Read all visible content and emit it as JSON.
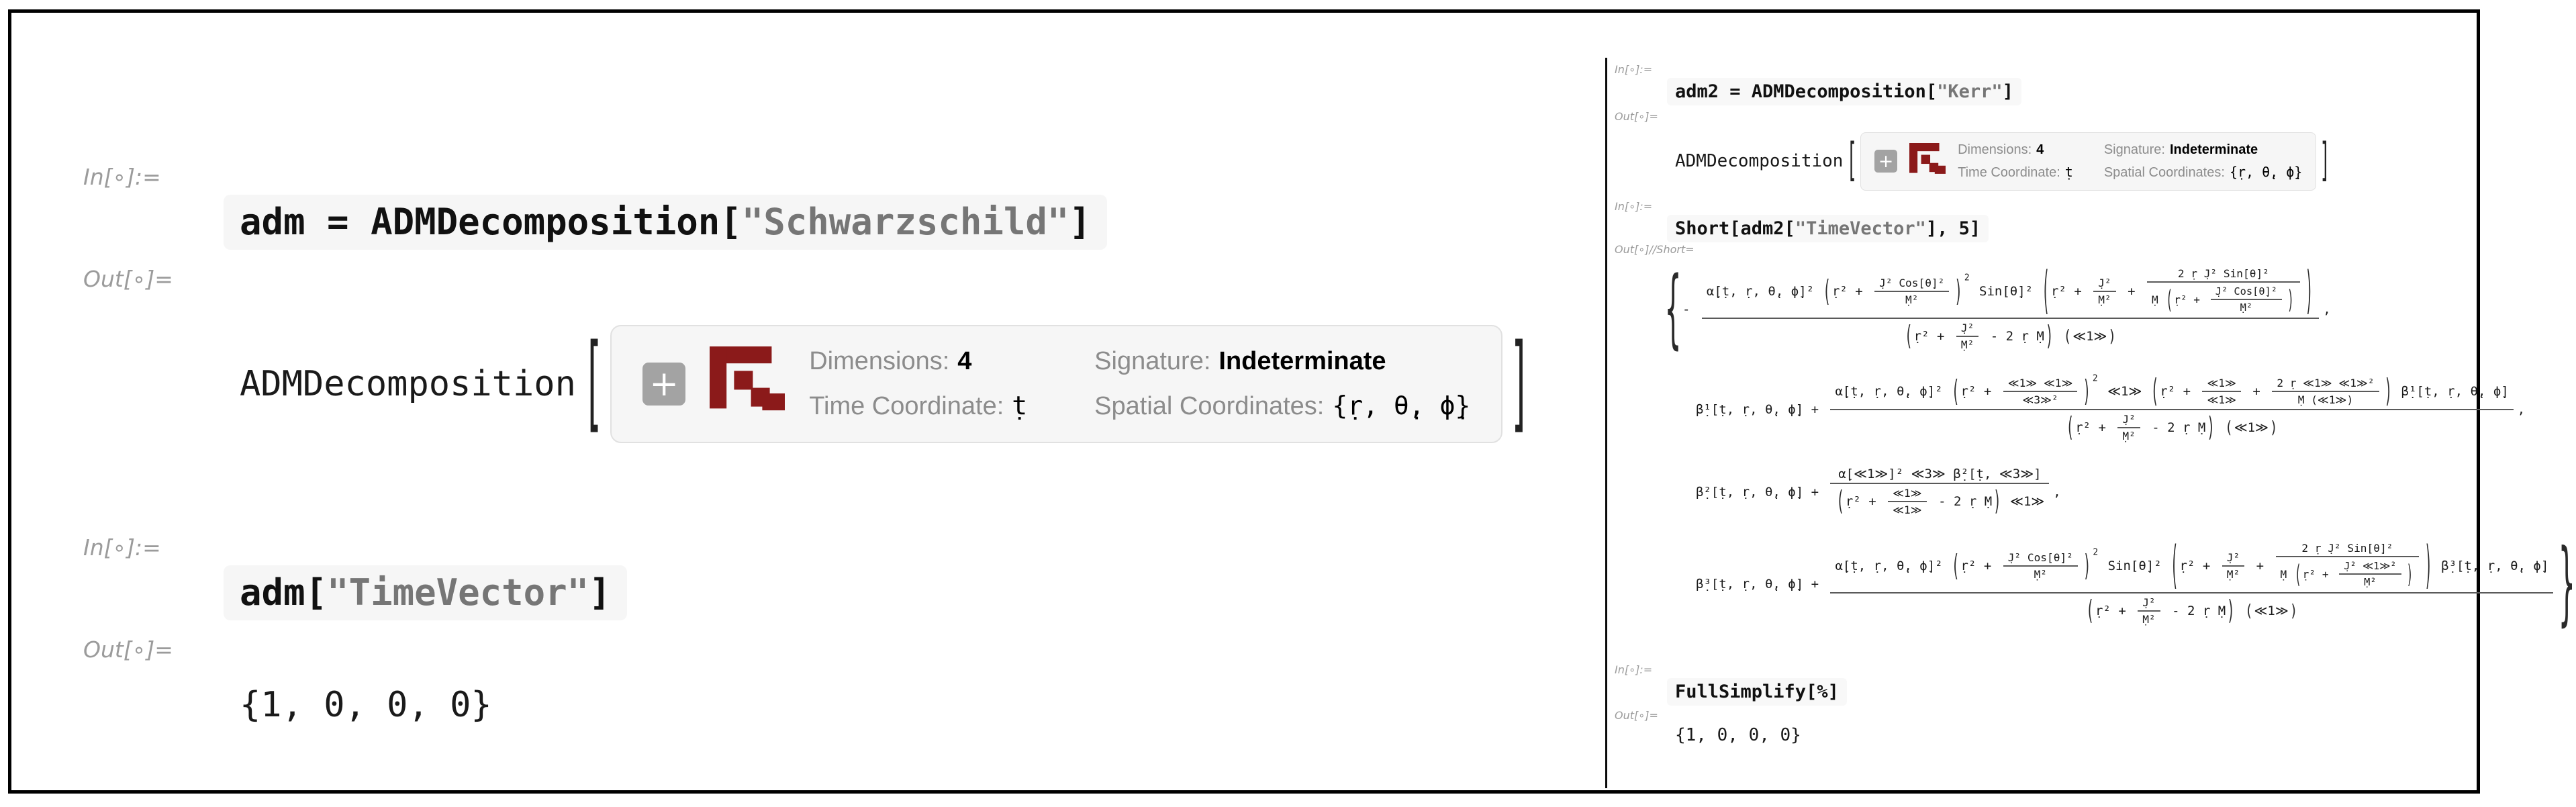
{
  "colors": {
    "accent_maroon": "#8b1a1a",
    "box_bg": "#f6f6f6",
    "box_border": "#e1e1e1",
    "label_gray": "#8c8c8c",
    "inout_label_gray": "#9b9b9b",
    "string_gray": "#767676",
    "frame_black": "#000000"
  },
  "left_panel": {
    "in1_label": "In[∘]:=",
    "input1": {
      "pre": "adm = ADMDecomposition[",
      "string": "\"Schwarzschild\"",
      "post": "]"
    },
    "out1_label": "Out[∘]=",
    "output1_head": "ADMDecomposition",
    "bracket_open": "[",
    "bracket_close": "]",
    "summary": {
      "plus_icon": "+",
      "dim_label": "Dimensions:",
      "dim_value": "4",
      "time_label": "Time Coordinate:",
      "time_value": "ṭ",
      "sig_label": "Signature:",
      "sig_value": "Indeterminate",
      "spatial_label": "Spatial Coordinates:",
      "spatial_value": "{ṛ, θ̣, ϕ̣}"
    },
    "in2_label": "In[∘]:=",
    "input2": {
      "pre": "adm[",
      "string": "\"TimeVector\"",
      "post": "]"
    },
    "out2_label": "Out[∘]=",
    "output2": "{1, 0, 0, 0}"
  },
  "right_panel": {
    "in1_label": "In[∘]:=",
    "input1": {
      "pre": "adm2 = ADMDecomposition[",
      "string": "\"Kerr\"",
      "post": "]"
    },
    "out1_label": "Out[∘]=",
    "output1_head": "ADMDecomposition",
    "bracket_open": "[",
    "bracket_close": "]",
    "summary": {
      "plus_icon": "+",
      "dim_label": "Dimensions:",
      "dim_value": "4",
      "time_label": "Time Coordinate:",
      "time_value": "ṭ",
      "sig_label": "Signature:",
      "sig_value": "Indeterminate",
      "spatial_label": "Spatial Coordinates:",
      "spatial_value": "{ṛ, θ̣, ϕ̣}"
    },
    "in2_label": "In[∘]:=",
    "input2": {
      "pre": "Short[adm2[",
      "string": "\"TimeVector\"",
      "post": "], 5]"
    },
    "out2_label": "Out[∘]//Short=",
    "in3_label": "In[∘]:=",
    "input3": {
      "pre": "FullSimplify[%]",
      "string": "",
      "post": ""
    },
    "out3_label": "Out[∘]=",
    "output3": "{1, 0, 0, 0}",
    "math": [
      [
        {
          "br": "{",
          "s": 3.2,
          "fs": 2.1
        },
        "- ",
        {
          "fr": [
            [
              "α̣[ṭ, ṛ, θ̣, ϕ̣]² ",
              {
                "par": [
                  "(",
                  ")"
                ],
                "s": 2.3,
                "c": [
                  "ṛ² + ",
                  {
                    "fr": [
                      "J̣² Cos[θ̣]²",
                      "Ṃ²"
                    ]
                  }
                ]
              },
              {
                "sup": "2"
              },
              " Sin[θ̣]² ",
              {
                "par": [
                  "(",
                  ")"
                ],
                "s": 4.0,
                "c": [
                  "ṛ² + ",
                  {
                    "fr": [
                      "J̣²",
                      "Ṃ²"
                    ]
                  },
                  " + ",
                  {
                    "fr": [
                      "2 ṛ J̣² Sin[θ̣]²",
                      [
                        "Ṃ ",
                        {
                          "par": [
                            "(",
                            ")"
                          ],
                          "s": 2.3,
                          "c": [
                            "ṛ² + ",
                            {
                              "fr": [
                                "J̣² Cos[θ̣]²",
                                "Ṃ²"
                              ]
                            }
                          ]
                        }
                      ]
                    ]
                  }
                ]
              }
            ],
            [
              {
                "par": [
                  "(",
                  ")"
                ],
                "s": 2.1,
                "c": [
                  "ṛ² + ",
                  {
                    "fr": [
                      "J̣²",
                      "Ṃ²"
                    ]
                  },
                  " - 2 ṛ Ṃ"
                ]
              },
              " ",
              {
                "par": [
                  "(",
                  ")"
                ],
                "s": 1.3,
                "c": [
                  "≪1≫"
                ]
              }
            ]
          ]
        },
        ","
      ],
      [
        "β̣¹[ṭ, ṛ, θ̣, ϕ̣] + ",
        {
          "fr": [
            [
              "α̣[ṭ, ṛ, θ̣, ϕ̣]² ",
              {
                "par": [
                  "(",
                  ")"
                ],
                "s": 2.3,
                "c": [
                  "ṛ² + ",
                  {
                    "fr": [
                      "≪1≫ ≪1≫",
                      "≪3≫²"
                    ]
                  }
                ]
              },
              {
                "sup": "2"
              },
              " ≪1≫ ",
              {
                "par": [
                  "(",
                  ")"
                ],
                "s": 2.5,
                "c": [
                  "ṛ² + ",
                  {
                    "fr": [
                      "≪1≫",
                      "≪1≫"
                    ]
                  },
                  " + ",
                  {
                    "fr": [
                      "2 ṛ ≪1≫ ≪1≫²",
                      "Ṃ (≪1≫)"
                    ]
                  }
                ]
              },
              " β̣¹[ṭ, ṛ, θ̣, ϕ̣]"
            ],
            [
              {
                "par": [
                  "(",
                  ")"
                ],
                "s": 2.1,
                "c": [
                  "ṛ² + ",
                  {
                    "fr": [
                      "J̣²",
                      "Ṃ²"
                    ]
                  },
                  " - 2 ṛ Ṃ"
                ]
              },
              " ",
              {
                "par": [
                  "(",
                  ")"
                ],
                "s": 1.3,
                "c": [
                  "≪1≫"
                ]
              }
            ]
          ]
        },
        ","
      ],
      [
        "β̣²[ṭ, ṛ, θ̣, ϕ̣] + ",
        {
          "fr": [
            "α̣[≪1≫]² ≪3≫ β̣²[ṭ, ≪3≫]",
            [
              {
                "par": [
                  "(",
                  ")"
                ],
                "s": 2.1,
                "c": [
                  "ṛ² + ",
                  {
                    "fr": [
                      "≪1≫",
                      "≪1≫"
                    ]
                  },
                  " - 2 ṛ Ṃ"
                ]
              },
              " ≪1≫"
            ]
          ]
        },
        ","
      ],
      [
        "β̣³[ṭ, ṛ, θ̣, ϕ̣] + ",
        {
          "fr": [
            [
              "α̣[ṭ, ṛ, θ̣, ϕ̣]² ",
              {
                "par": [
                  "(",
                  ")"
                ],
                "s": 2.3,
                "c": [
                  "ṛ² + ",
                  {
                    "fr": [
                      "J̣² Cos[θ̣]²",
                      "Ṃ²"
                    ]
                  }
                ]
              },
              {
                "sup": "2"
              },
              " Sin[θ̣]² ",
              {
                "par": [
                  "(",
                  ")"
                ],
                "s": 4.0,
                "c": [
                  "ṛ² + ",
                  {
                    "fr": [
                      "J̣²",
                      "Ṃ²"
                    ]
                  },
                  " + ",
                  {
                    "fr": [
                      "2 ṛ J̣² Sin[θ̣]²",
                      [
                        "Ṃ ",
                        {
                          "par": [
                            "(",
                            ")"
                          ],
                          "s": 2.3,
                          "c": [
                            "ṛ² + ",
                            {
                              "fr": [
                                "J̣² ≪1≫²",
                                "Ṃ²"
                              ]
                            }
                          ]
                        }
                      ]
                    ]
                  }
                ]
              },
              " β̣³[ṭ, ṛ, θ̣, ϕ̣]"
            ],
            [
              {
                "par": [
                  "(",
                  ")"
                ],
                "s": 2.1,
                "c": [
                  "ṛ² + ",
                  {
                    "fr": [
                      "J̣²",
                      "Ṃ²"
                    ]
                  },
                  " - 2 ṛ Ṃ"
                ]
              },
              " ",
              {
                "par": [
                  "(",
                  ")"
                ],
                "s": 1.3,
                "c": [
                  "≪1≫"
                ]
              }
            ]
          ]
        },
        {
          "br": "}",
          "s": 3.4,
          "fs": 2.1
        }
      ]
    ]
  }
}
